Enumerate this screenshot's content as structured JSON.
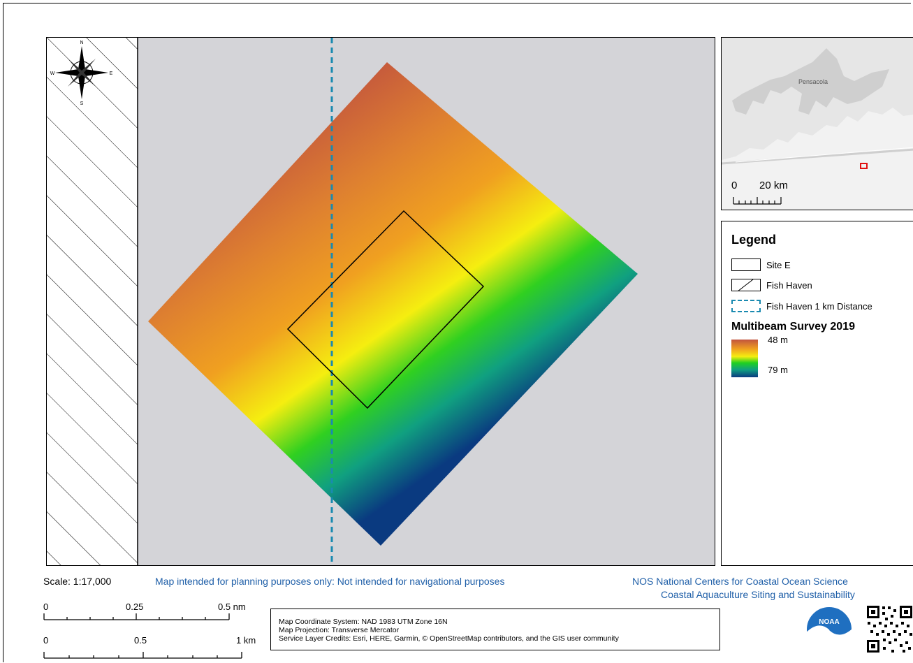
{
  "legend": {
    "title": "Legend",
    "items": [
      {
        "label": "Site E"
      },
      {
        "label": "Fish Haven"
      },
      {
        "label": "Fish Haven 1 km Distance"
      }
    ],
    "ramp_title": "Multibeam Survey 2019",
    "ramp_top": "48 m",
    "ramp_bottom": "79 m"
  },
  "inset": {
    "place": "Pensacola",
    "scale_zero": "0",
    "scale_end": "20 km"
  },
  "footer": {
    "scale": "Scale: 1:17,000",
    "disclaimer": "Map intended for planning purposes only: Not intended for navigational purposes",
    "org_line1": "NOS National Centers for Coastal Ocean Science",
    "org_line2": "Coastal Aquaculture Siting and Sustainability",
    "info_line1": "Map Coordinate System: NAD 1983 UTM Zone 16N",
    "info_line2": "Map Projection: Transverse Mercator",
    "info_line3": "Service Layer Credits: Esri, HERE, Garmin, © OpenStreetMap contributors, and the GIS user community",
    "noaa": "NOAA"
  },
  "scalebar": {
    "nm": {
      "zero": "0",
      "mid": "0.25",
      "end": "0.5 nm"
    },
    "km": {
      "zero": "0",
      "mid": "0.5",
      "end": "1 km"
    }
  },
  "compass": {
    "n": "N",
    "s": "S",
    "e": "E",
    "w": "W"
  },
  "colors": {
    "depth_shallow": "#c2543e",
    "depth_mid": "#f5ee10",
    "depth_deep": "#0a3a80",
    "buffer_line": "#1a8ab0"
  }
}
